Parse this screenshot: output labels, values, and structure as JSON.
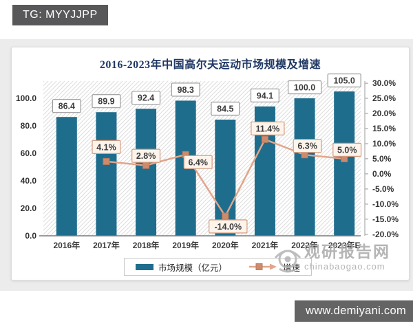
{
  "page": {
    "tg_badge": "TG: MYYJJPP",
    "site_badge": "www.demiyani.com"
  },
  "watermark": {
    "name": "观研报告网",
    "domain": "chinabaogao.com"
  },
  "chart_data": {
    "type": "combo-bar-line",
    "title": "2016-2023年中国高尔夫运动市场规模及增速",
    "categories": [
      "2016年",
      "2017年",
      "2018年",
      "2019年",
      "2020年",
      "2021年",
      "2022年",
      "2023年E"
    ],
    "series": [
      {
        "name": "市场规模（亿元）",
        "type": "bar",
        "axis": "left",
        "color": "#1e6d8d",
        "values": [
          86.4,
          89.9,
          92.4,
          98.3,
          84.5,
          94.1,
          100.0,
          105.0
        ],
        "labels": [
          "86.4",
          "89.9",
          "92.4",
          "98.3",
          "84.5",
          "94.1",
          "100.0",
          "105.0"
        ]
      },
      {
        "name": "增速",
        "type": "line",
        "axis": "right",
        "color": "#e2a58a",
        "marker_color": "#ce8b6c",
        "values": [
          null,
          4.1,
          2.8,
          6.4,
          -14.0,
          11.4,
          6.3,
          5.0
        ],
        "labels": [
          null,
          "4.1%",
          "2.8%",
          "6.4%",
          "-14.0%",
          "11.4%",
          "6.3%",
          "5.0%"
        ]
      }
    ],
    "left_axis": {
      "min": 0,
      "max": 112.5,
      "ticks": [
        0,
        20,
        40,
        60,
        80,
        100
      ],
      "tick_labels": [
        "0.0",
        "20.0",
        "40.0",
        "60.0",
        "80.0",
        "100.0"
      ]
    },
    "right_axis": {
      "min": -20.5,
      "max": 30.7,
      "ticks": [
        30,
        25,
        20,
        15,
        10,
        5,
        0,
        -5,
        -10,
        -15,
        -20
      ],
      "tick_labels": [
        "30.0%",
        "25.0%",
        "20.0%",
        "15.0%",
        "10.0%",
        "5.0%",
        "0.0%",
        "-5.0%",
        "-10.0%",
        "-15.0%",
        "-20.0%"
      ]
    },
    "grid": "diagonal-hatch-background",
    "legend_position": "bottom-center",
    "label_box_colors": {
      "bar_label_border": "#9b9b9b",
      "bar_label_bg": "#ffffff",
      "growth_label_border": "#d49b7e",
      "growth_label_bg": "#fdf4ec",
      "label_text": "#3d3d3d"
    }
  }
}
